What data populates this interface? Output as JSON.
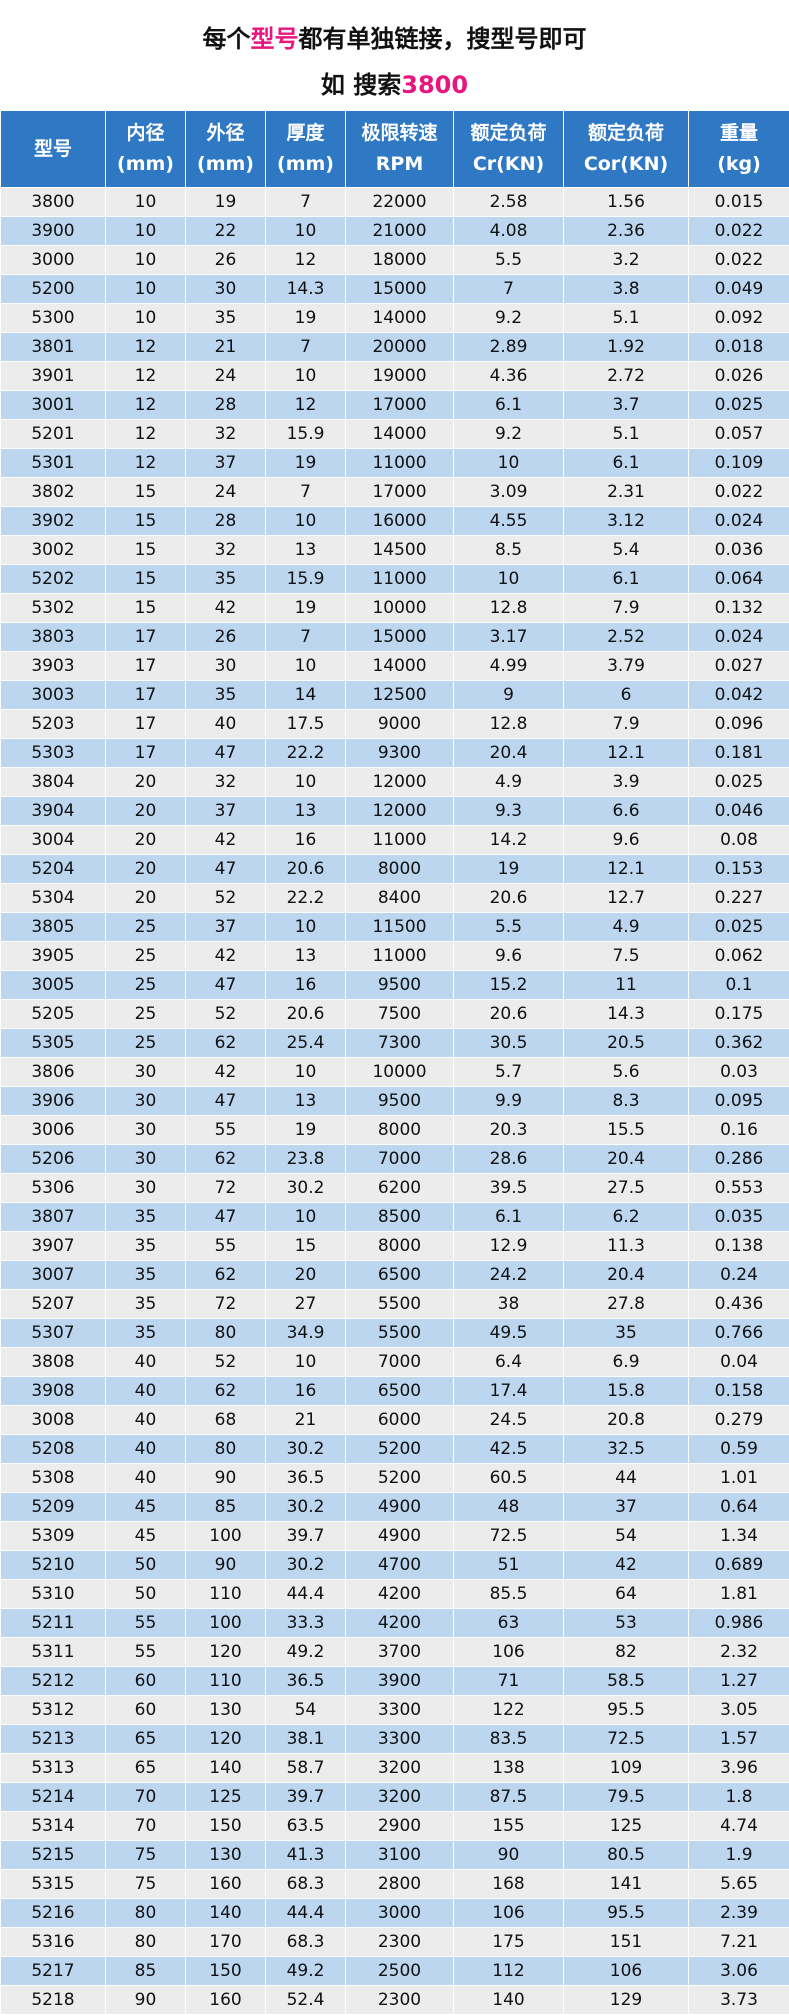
{
  "header": {
    "line1_a": "每个",
    "line1_accent": "型号",
    "line1_b": "都有单独链接，搜型号即可",
    "line2_a": "如 搜索",
    "line2_accent": "3800"
  },
  "colors": {
    "header_bg": "#2f78c4",
    "accent": "#e8157f",
    "row_gray": "#ececec",
    "row_blue": "#bcd6ef"
  },
  "table": {
    "columns": [
      [
        "型号"
      ],
      [
        "内径",
        "(mm)"
      ],
      [
        "外径",
        "(mm)"
      ],
      [
        "厚度",
        "(mm)"
      ],
      [
        "极限转速",
        "RPM"
      ],
      [
        "额定负荷",
        "Cr(KN)"
      ],
      [
        "额定负荷",
        "Cor(KN)"
      ],
      [
        "重量",
        "(kg)"
      ]
    ],
    "rows": [
      [
        "3800",
        "10",
        "19",
        "7",
        "22000",
        "2.58",
        "1.56",
        "0.015"
      ],
      [
        "3900",
        "10",
        "22",
        "10",
        "21000",
        "4.08",
        "2.36",
        "0.022"
      ],
      [
        "3000",
        "10",
        "26",
        "12",
        "18000",
        "5.5",
        "3.2",
        "0.022"
      ],
      [
        "5200",
        "10",
        "30",
        "14.3",
        "15000",
        "7",
        "3.8",
        "0.049"
      ],
      [
        "5300",
        "10",
        "35",
        "19",
        "14000",
        "9.2",
        "5.1",
        "0.092"
      ],
      [
        "3801",
        "12",
        "21",
        "7",
        "20000",
        "2.89",
        "1.92",
        "0.018"
      ],
      [
        "3901",
        "12",
        "24",
        "10",
        "19000",
        "4.36",
        "2.72",
        "0.026"
      ],
      [
        "3001",
        "12",
        "28",
        "12",
        "17000",
        "6.1",
        "3.7",
        "0.025"
      ],
      [
        "5201",
        "12",
        "32",
        "15.9",
        "14000",
        "9.2",
        "5.1",
        "0.057"
      ],
      [
        "5301",
        "12",
        "37",
        "19",
        "11000",
        "10",
        "6.1",
        "0.109"
      ],
      [
        "3802",
        "15",
        "24",
        "7",
        "17000",
        "3.09",
        "2.31",
        "0.022"
      ],
      [
        "3902",
        "15",
        "28",
        "10",
        "16000",
        "4.55",
        "3.12",
        "0.024"
      ],
      [
        "3002",
        "15",
        "32",
        "13",
        "14500",
        "8.5",
        "5.4",
        "0.036"
      ],
      [
        "5202",
        "15",
        "35",
        "15.9",
        "11000",
        "10",
        "6.1",
        "0.064"
      ],
      [
        "5302",
        "15",
        "42",
        "19",
        "10000",
        "12.8",
        "7.9",
        "0.132"
      ],
      [
        "3803",
        "17",
        "26",
        "7",
        "15000",
        "3.17",
        "2.52",
        "0.024"
      ],
      [
        "3903",
        "17",
        "30",
        "10",
        "14000",
        "4.99",
        "3.79",
        "0.027"
      ],
      [
        "3003",
        "17",
        "35",
        "14",
        "12500",
        "9",
        "6",
        "0.042"
      ],
      [
        "5203",
        "17",
        "40",
        "17.5",
        "9000",
        "12.8",
        "7.9",
        "0.096"
      ],
      [
        "5303",
        "17",
        "47",
        "22.2",
        "9300",
        "20.4",
        "12.1",
        "0.181"
      ],
      [
        "3804",
        "20",
        "32",
        "10",
        "12000",
        "4.9",
        "3.9",
        "0.025"
      ],
      [
        "3904",
        "20",
        "37",
        "13",
        "12000",
        "9.3",
        "6.6",
        "0.046"
      ],
      [
        "3004",
        "20",
        "42",
        "16",
        "11000",
        "14.2",
        "9.6",
        "0.08"
      ],
      [
        "5204",
        "20",
        "47",
        "20.6",
        "8000",
        "19",
        "12.1",
        "0.153"
      ],
      [
        "5304",
        "20",
        "52",
        "22.2",
        "8400",
        "20.6",
        "12.7",
        "0.227"
      ],
      [
        "3805",
        "25",
        "37",
        "10",
        "11500",
        "5.5",
        "4.9",
        "0.025"
      ],
      [
        "3905",
        "25",
        "42",
        "13",
        "11000",
        "9.6",
        "7.5",
        "0.062"
      ],
      [
        "3005",
        "25",
        "47",
        "16",
        "9500",
        "15.2",
        "11",
        "0.1"
      ],
      [
        "5205",
        "25",
        "52",
        "20.6",
        "7500",
        "20.6",
        "14.3",
        "0.175"
      ],
      [
        "5305",
        "25",
        "62",
        "25.4",
        "7300",
        "30.5",
        "20.5",
        "0.362"
      ],
      [
        "3806",
        "30",
        "42",
        "10",
        "10000",
        "5.7",
        "5.6",
        "0.03"
      ],
      [
        "3906",
        "30",
        "47",
        "13",
        "9500",
        "9.9",
        "8.3",
        "0.095"
      ],
      [
        "3006",
        "30",
        "55",
        "19",
        "8000",
        "20.3",
        "15.5",
        "0.16"
      ],
      [
        "5206",
        "30",
        "62",
        "23.8",
        "7000",
        "28.6",
        "20.4",
        "0.286"
      ],
      [
        "5306",
        "30",
        "72",
        "30.2",
        "6200",
        "39.5",
        "27.5",
        "0.553"
      ],
      [
        "3807",
        "35",
        "47",
        "10",
        "8500",
        "6.1",
        "6.2",
        "0.035"
      ],
      [
        "3907",
        "35",
        "55",
        "15",
        "8000",
        "12.9",
        "11.3",
        "0.138"
      ],
      [
        "3007",
        "35",
        "62",
        "20",
        "6500",
        "24.2",
        "20.4",
        "0.24"
      ],
      [
        "5207",
        "35",
        "72",
        "27",
        "5500",
        "38",
        "27.8",
        "0.436"
      ],
      [
        "5307",
        "35",
        "80",
        "34.9",
        "5500",
        "49.5",
        "35",
        "0.766"
      ],
      [
        "3808",
        "40",
        "52",
        "10",
        "7000",
        "6.4",
        "6.9",
        "0.04"
      ],
      [
        "3908",
        "40",
        "62",
        "16",
        "6500",
        "17.4",
        "15.8",
        "0.158"
      ],
      [
        "3008",
        "40",
        "68",
        "21",
        "6000",
        "24.5",
        "20.8",
        "0.279"
      ],
      [
        "5208",
        "40",
        "80",
        "30.2",
        "5200",
        "42.5",
        "32.5",
        "0.59"
      ],
      [
        "5308",
        "40",
        "90",
        "36.5",
        "5200",
        "60.5",
        "44",
        "1.01"
      ],
      [
        "5209",
        "45",
        "85",
        "30.2",
        "4900",
        "48",
        "37",
        "0.64"
      ],
      [
        "5309",
        "45",
        "100",
        "39.7",
        "4900",
        "72.5",
        "54",
        "1.34"
      ],
      [
        "5210",
        "50",
        "90",
        "30.2",
        "4700",
        "51",
        "42",
        "0.689"
      ],
      [
        "5310",
        "50",
        "110",
        "44.4",
        "4200",
        "85.5",
        "64",
        "1.81"
      ],
      [
        "5211",
        "55",
        "100",
        "33.3",
        "4200",
        "63",
        "53",
        "0.986"
      ],
      [
        "5311",
        "55",
        "120",
        "49.2",
        "3700",
        "106",
        "82",
        "2.32"
      ],
      [
        "5212",
        "60",
        "110",
        "36.5",
        "3900",
        "71",
        "58.5",
        "1.27"
      ],
      [
        "5312",
        "60",
        "130",
        "54",
        "3300",
        "122",
        "95.5",
        "3.05"
      ],
      [
        "5213",
        "65",
        "120",
        "38.1",
        "3300",
        "83.5",
        "72.5",
        "1.57"
      ],
      [
        "5313",
        "65",
        "140",
        "58.7",
        "3200",
        "138",
        "109",
        "3.96"
      ],
      [
        "5214",
        "70",
        "125",
        "39.7",
        "3200",
        "87.5",
        "79.5",
        "1.8"
      ],
      [
        "5314",
        "70",
        "150",
        "63.5",
        "2900",
        "155",
        "125",
        "4.74"
      ],
      [
        "5215",
        "75",
        "130",
        "41.3",
        "3100",
        "90",
        "80.5",
        "1.9"
      ],
      [
        "5315",
        "75",
        "160",
        "68.3",
        "2800",
        "168",
        "141",
        "5.65"
      ],
      [
        "5216",
        "80",
        "140",
        "44.4",
        "3000",
        "106",
        "95.5",
        "2.39"
      ],
      [
        "5316",
        "80",
        "170",
        "68.3",
        "2300",
        "175",
        "151",
        "7.21"
      ],
      [
        "5217",
        "85",
        "150",
        "49.2",
        "2500",
        "112",
        "106",
        "3.06"
      ],
      [
        "5218",
        "90",
        "160",
        "52.4",
        "2300",
        "140",
        "129",
        "3.73"
      ]
    ]
  }
}
